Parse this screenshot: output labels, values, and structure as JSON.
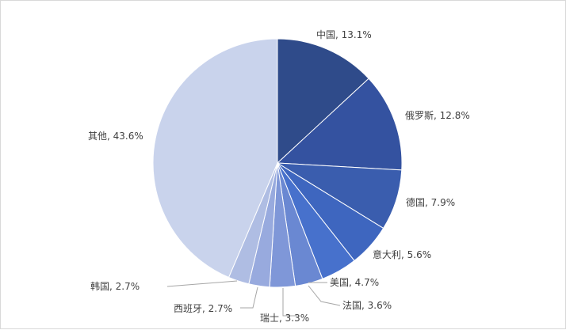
{
  "chart_data": {
    "type": "pie",
    "title": "",
    "slices": [
      {
        "label": "中国",
        "value": 13.1,
        "display": "中国, 13.1%",
        "color": "#2f4b8a"
      },
      {
        "label": "俄罗斯",
        "value": 12.8,
        "display": "俄罗斯, 12.8%",
        "color": "#3452a0"
      },
      {
        "label": "德国",
        "value": 7.9,
        "display": "德国, 7.9%",
        "color": "#3a5dae"
      },
      {
        "label": "意大利",
        "value": 5.6,
        "display": "意大利, 5.6%",
        "color": "#3e66bf"
      },
      {
        "label": "美国",
        "value": 4.7,
        "display": "美国, 4.7%",
        "color": "#4771cc"
      },
      {
        "label": "法国",
        "value": 3.6,
        "display": "法国, 3.6%",
        "color": "#6a88d2"
      },
      {
        "label": "瑞士",
        "value": 3.3,
        "display": "瑞士, 3.3%",
        "color": "#7f97d8"
      },
      {
        "label": "西班牙",
        "value": 2.7,
        "display": "西班牙, 2.7%",
        "color": "#98aade"
      },
      {
        "label": "韩国",
        "value": 2.7,
        "display": "韩国, 2.7%",
        "color": "#afbde3"
      },
      {
        "label": "其他",
        "value": 43.6,
        "display": "其他, 43.6%",
        "color": "#c9d3ec"
      }
    ],
    "start_angle": "12 o'clock",
    "direction": "clockwise",
    "legend": "none",
    "data_labels": "outside-with-leader-lines"
  }
}
